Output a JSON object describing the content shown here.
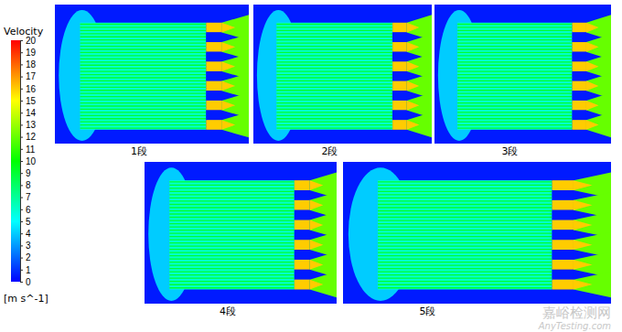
{
  "chart_data": {
    "type": "contour",
    "colorbar": {
      "title": "Velocity",
      "unit": "[m s^-1]",
      "range": [
        0,
        20
      ],
      "ticks": [
        0,
        1,
        2,
        3,
        4,
        5,
        6,
        7,
        8,
        9,
        10,
        11,
        12,
        13,
        14,
        15,
        16,
        17,
        18,
        19,
        20
      ]
    },
    "field": {
      "ambient": 0.5,
      "inlet": 4,
      "tube_gap": 6,
      "tube_line": 9,
      "nozzle": 16,
      "jet": 12,
      "blockage": 0.5
    },
    "panels": [
      {
        "title": "1段"
      },
      {
        "title": "2段"
      },
      {
        "title": "3段"
      },
      {
        "title": "4段"
      },
      {
        "title": "5段"
      }
    ],
    "watermark": [
      "嘉峪检测网",
      "AnyTesting.com"
    ]
  }
}
